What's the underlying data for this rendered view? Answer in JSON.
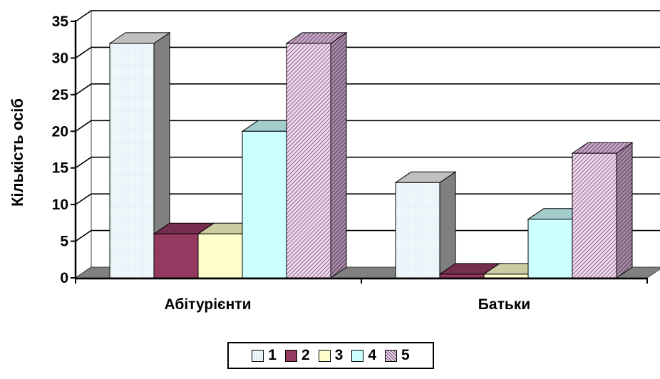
{
  "chart_data": {
    "type": "bar",
    "subtype": "3d-clustered-column",
    "title": "",
    "xlabel": "",
    "ylabel": "Кількість осіб",
    "categories": [
      "Абітурієнти",
      "Батьки"
    ],
    "ylim": [
      0,
      35
    ],
    "yticks": [
      "0",
      "5",
      "10",
      "15",
      "20",
      "25",
      "30",
      "35"
    ],
    "grid": true,
    "legend_position": "bottom",
    "series": [
      {
        "name": "1",
        "values": [
          32,
          13
        ],
        "color": "#f6fbfd",
        "pattern": "fine-grid"
      },
      {
        "name": "2",
        "values": [
          6,
          0.5
        ],
        "color": "#943a61",
        "pattern": "solid"
      },
      {
        "name": "3",
        "values": [
          6,
          0.5
        ],
        "color": "#ffffcc",
        "pattern": "solid"
      },
      {
        "name": "4",
        "values": [
          20,
          8
        ],
        "color": "#ccffff",
        "pattern": "solid"
      },
      {
        "name": "5",
        "values": [
          32,
          17
        ],
        "color": "#f2d9f2",
        "pattern": "diagonal-hatch"
      }
    ]
  }
}
